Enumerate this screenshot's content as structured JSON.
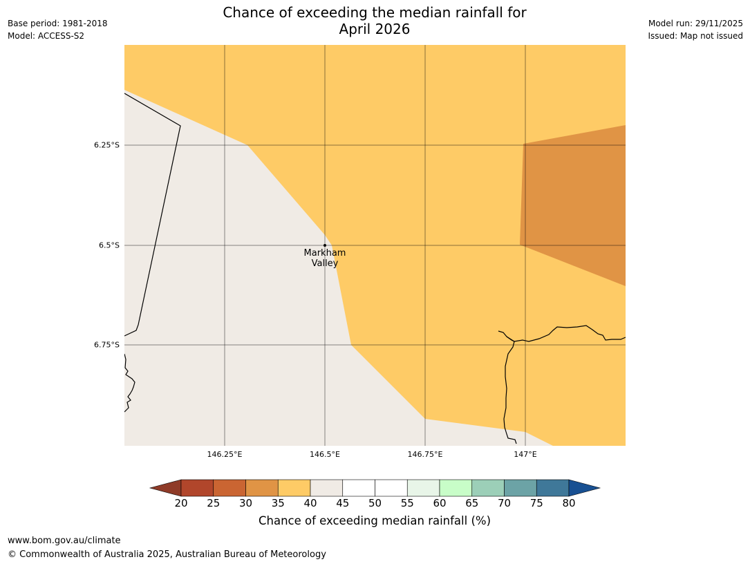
{
  "title": {
    "line1": "Chance of exceeding the median rainfall for",
    "line2": "April 2026"
  },
  "meta_left": {
    "base_period": "Base period: 1981-2018",
    "model": "Model: ACCESS-S2"
  },
  "meta_right": {
    "model_run": "Model run: 29/11/2025",
    "issued": "Issued: Map not issued"
  },
  "map": {
    "lat_labels": [
      "6.25°S",
      "6.5°S",
      "6.75°S"
    ],
    "lon_labels": [
      "146.25°E",
      "146.5°E",
      "146.75°E",
      "147°E"
    ],
    "place": {
      "name_line1": "Markham",
      "name_line2": "Valley",
      "lat": -6.5,
      "lon": 146.5
    },
    "colors": {
      "band_40_45": "#f0ebe5",
      "band_35_40": "#fecb66",
      "band_30_35": "#e09445"
    }
  },
  "colorbar": {
    "ticks": [
      "20",
      "25",
      "30",
      "35",
      "40",
      "45",
      "50",
      "55",
      "60",
      "65",
      "70",
      "75",
      "80"
    ],
    "colors": [
      "#b1462b",
      "#ca6532",
      "#e09445",
      "#fecb66",
      "#f0ebe5",
      "#ffffff",
      "#ffffff",
      "#e8f5e8",
      "#c8fdc8",
      "#9ccfb8",
      "#6ca3a6",
      "#3f7899"
    ],
    "low_extend_color": "#8f3b28",
    "high_extend_color": "#185092",
    "label": "Chance of exceeding median rainfall (%)"
  },
  "footer": {
    "url": "www.bom.gov.au/climate",
    "copyright": "© Commonwealth of Australia 2025, Australian Bureau of Meteorology"
  }
}
